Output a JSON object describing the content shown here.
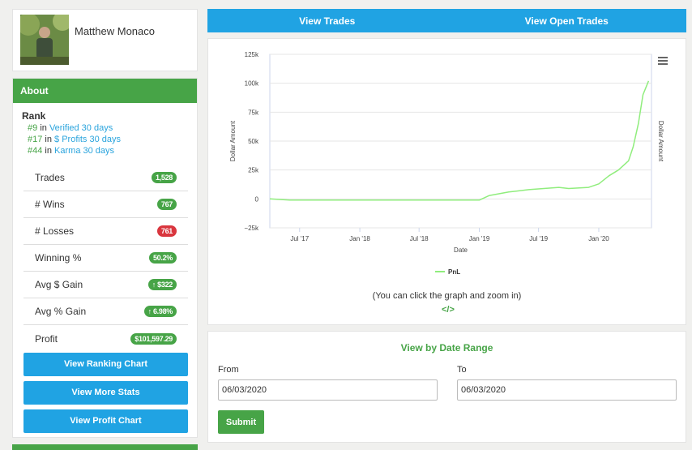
{
  "profile": {
    "name": "Matthew Monaco"
  },
  "about": {
    "header": "About",
    "rank_title": "Rank",
    "ranks": [
      {
        "position": "#9",
        "connector": "in",
        "category": "Verified 30 days"
      },
      {
        "position": "#17",
        "connector": "in",
        "category": "$ Profits 30 days"
      },
      {
        "position": "#44",
        "connector": "in",
        "category": "Karma 30 days"
      }
    ],
    "stats": [
      {
        "label": "Trades",
        "value": "1,528",
        "color": "#47a447"
      },
      {
        "label": "# Wins",
        "value": "767",
        "color": "#47a447"
      },
      {
        "label": "# Losses",
        "value": "761",
        "color": "#d9363e"
      },
      {
        "label": "Winning %",
        "value": "50.2%",
        "color": "#47a447"
      },
      {
        "label": "Avg $ Gain",
        "value": "↑ $322",
        "color": "#47a447"
      },
      {
        "label": "Avg % Gain",
        "value": "↑ 6.98%",
        "color": "#47a447"
      },
      {
        "label": "Profit",
        "value": "$101,597.29",
        "color": "#47a447"
      }
    ],
    "buttons": {
      "ranking_chart": "View Ranking Chart",
      "more_stats": "View More Stats",
      "profit_chart": "View Profit Chart"
    }
  },
  "tabs": {
    "view_trades": "View Trades",
    "view_open_trades": "View Open Trades"
  },
  "chart": {
    "note": "(You can click the graph and zoom in)",
    "code_icon": "</>",
    "icons": {
      "menu": "hamburger-menu-icon",
      "code": "code-icon"
    }
  },
  "chart_data": {
    "type": "line",
    "title": "",
    "xlabel": "Date",
    "ylabel": "Dollar Amount",
    "ylabel_right": "Dollar Amount",
    "ylim": [
      -25000,
      125000
    ],
    "y_ticks": [
      "125k",
      "100k",
      "75k",
      "50k",
      "25k",
      "0",
      "−25k"
    ],
    "x_ticks": [
      "Jul '17",
      "Jan '18",
      "Jul '18",
      "Jan '19",
      "Jul '19",
      "Jan '20"
    ],
    "legend": "bottom-center",
    "series": [
      {
        "name": "PnL",
        "color": "#90ed7d",
        "x": [
          "2017-04",
          "2017-06",
          "2017-09",
          "2018-01",
          "2018-06",
          "2018-09",
          "2019-01",
          "2019-02",
          "2019-04",
          "2019-06",
          "2019-09",
          "2019-10",
          "2019-12",
          "2020-01",
          "2020-02",
          "2020-03",
          "2020-04",
          "2020-04-15",
          "2020-05-01",
          "2020-05-15",
          "2020-06-01"
        ],
        "y": [
          0,
          -1000,
          -1000,
          -1000,
          -1000,
          -1000,
          -1000,
          3000,
          6000,
          8000,
          10000,
          9000,
          10000,
          13000,
          20000,
          25000,
          33000,
          45000,
          65000,
          90000,
          102000
        ]
      }
    ]
  },
  "date_range": {
    "title": "View by Date Range",
    "from_label": "From",
    "from_value": "06/03/2020",
    "to_label": "To",
    "to_value": "06/03/2020",
    "submit": "Submit"
  }
}
